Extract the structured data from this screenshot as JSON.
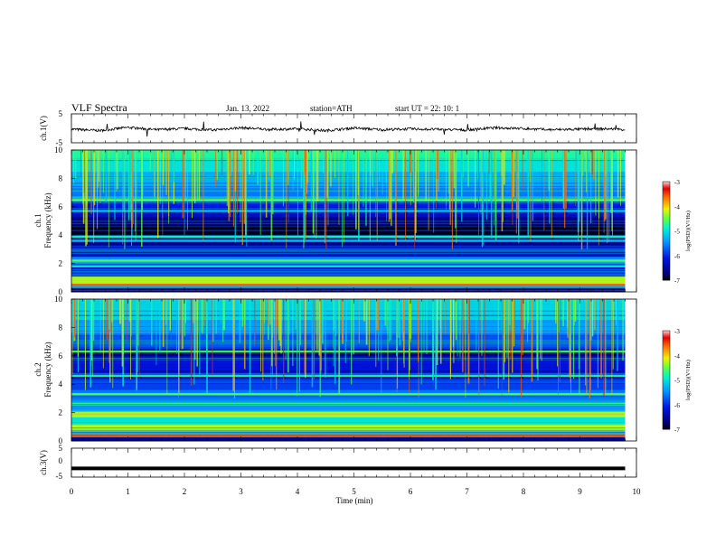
{
  "header": {
    "title": "VLF  Spectra",
    "date": "Jan.  13,  2022",
    "station": "station=ATH",
    "start_ut": "start  UT  =    22: 10: 1"
  },
  "chart_data": [
    {
      "panel": "ch1-voltage",
      "type": "line",
      "ylabel": "ch.1(V)",
      "ylim": [
        -5,
        5
      ],
      "yticks": [
        "5",
        "-5"
      ],
      "xlim": [
        0,
        10
      ],
      "series": [
        {
          "x": [
            0,
            0.5,
            1,
            1.5,
            2,
            2.5,
            3,
            3.5,
            4,
            4.5,
            5,
            5.5,
            6,
            6.5,
            7,
            7.5,
            8,
            8.5,
            9,
            9.5,
            9.8
          ],
          "values": [
            -0.3,
            -0.8,
            0.3,
            -0.5,
            -0.1,
            -0.6,
            0.2,
            -0.4,
            -0.2,
            -0.8,
            0.1,
            -0.5,
            -0.2,
            -0.4,
            -0.6,
            0.2,
            -0.1,
            -0.5,
            -0.3,
            -0.2,
            -0.4
          ]
        }
      ],
      "color": "#000000"
    },
    {
      "panel": "ch1-spectrogram",
      "type": "heatmap",
      "ylabel": "ch.1\nFrequency  (kHz)",
      "ylim": [
        0,
        10
      ],
      "yticks": [
        "0",
        "2",
        "4",
        "6",
        "8",
        "10"
      ],
      "xlim": [
        0,
        9.8
      ],
      "colorbar": {
        "label": "log(PSD)(V²/Hz)",
        "ticks": [
          "-3",
          "-4",
          "-5",
          "-6",
          "-7"
        ],
        "range": [
          -7,
          -3
        ]
      },
      "bands": [
        {
          "from": 0.0,
          "to": 0.3,
          "level": -6.8
        },
        {
          "from": 0.3,
          "to": 0.6,
          "level": -5.3
        },
        {
          "from": 0.6,
          "to": 1.0,
          "level": -4.3
        },
        {
          "from": 1.0,
          "to": 1.5,
          "level": -5.9
        },
        {
          "from": 1.5,
          "to": 2.0,
          "level": -6.1
        },
        {
          "from": 2.0,
          "to": 2.5,
          "level": -5.5
        },
        {
          "from": 2.5,
          "to": 3.3,
          "level": -6.3
        },
        {
          "from": 3.3,
          "to": 4.0,
          "level": -6.6
        },
        {
          "from": 4.0,
          "to": 4.7,
          "level": -6.95
        },
        {
          "from": 4.7,
          "to": 5.3,
          "level": -6.7
        },
        {
          "from": 5.3,
          "to": 6.0,
          "level": -6.3
        },
        {
          "from": 6.0,
          "to": 6.4,
          "level": -6.1
        },
        {
          "from": 6.4,
          "to": 6.7,
          "level": -5.1
        },
        {
          "from": 6.7,
          "to": 7.5,
          "level": -5.6
        },
        {
          "from": 7.5,
          "to": 8.5,
          "level": -5.3
        },
        {
          "from": 8.5,
          "to": 9.3,
          "level": -5.0
        },
        {
          "from": 9.3,
          "to": 10.0,
          "level": -4.8
        }
      ],
      "lines": [
        {
          "f": 0.5,
          "level": -3.6
        },
        {
          "f": 1.0,
          "level": -4.3
        },
        {
          "f": 1.8,
          "level": -4.9
        },
        {
          "f": 2.2,
          "level": -4.6
        },
        {
          "f": 3.6,
          "level": -5.2
        },
        {
          "f": 3.9,
          "level": -4.9
        },
        {
          "f": 5.7,
          "level": -5.2
        },
        {
          "f": 6.5,
          "level": -4.5
        }
      ]
    },
    {
      "panel": "ch2-spectrogram",
      "type": "heatmap",
      "ylabel": "ch.2\nFrequency  (kHz)",
      "ylim": [
        0,
        10
      ],
      "yticks": [
        "0",
        "2",
        "4",
        "6",
        "8",
        "10"
      ],
      "xlim": [
        0,
        9.8
      ],
      "colorbar": {
        "label": "log(PSD)(V²/Hz)",
        "ticks": [
          "-3",
          "-4",
          "-5",
          "-6",
          "-7"
        ],
        "range": [
          -7,
          -3
        ]
      },
      "bands": [
        {
          "from": 0.0,
          "to": 0.3,
          "level": -6.6
        },
        {
          "from": 0.3,
          "to": 0.7,
          "level": -5.1
        },
        {
          "from": 0.7,
          "to": 1.2,
          "level": -4.4
        },
        {
          "from": 1.2,
          "to": 1.7,
          "level": -5.0
        },
        {
          "from": 1.7,
          "to": 2.1,
          "level": -4.3
        },
        {
          "from": 2.1,
          "to": 2.8,
          "level": -5.3
        },
        {
          "from": 2.8,
          "to": 3.6,
          "level": -5.6
        },
        {
          "from": 3.6,
          "to": 4.4,
          "level": -5.9
        },
        {
          "from": 4.4,
          "to": 5.0,
          "level": -6.4
        },
        {
          "from": 5.0,
          "to": 6.0,
          "level": -6.2
        },
        {
          "from": 6.0,
          "to": 6.5,
          "level": -6.7
        },
        {
          "from": 6.5,
          "to": 7.5,
          "level": -5.8
        },
        {
          "from": 7.5,
          "to": 8.5,
          "level": -5.4
        },
        {
          "from": 8.5,
          "to": 10.0,
          "level": -5.1
        }
      ],
      "lines": [
        {
          "f": 0.4,
          "level": -3.5
        },
        {
          "f": 1.0,
          "level": -4.2
        },
        {
          "f": 1.9,
          "level": -4.0
        },
        {
          "f": 2.6,
          "level": -4.7
        },
        {
          "f": 3.3,
          "level": -4.6
        },
        {
          "f": 4.6,
          "level": -5.0
        },
        {
          "f": 6.3,
          "level": -4.6
        }
      ]
    },
    {
      "panel": "ch3-voltage",
      "type": "line",
      "ylabel": "ch.3(V)",
      "ylim": [
        -5,
        5
      ],
      "yticks": [
        "5",
        "0",
        "-5"
      ],
      "xlim": [
        0,
        10
      ],
      "xticks": [
        "0",
        "1",
        "2",
        "3",
        "4",
        "5",
        "6",
        "7",
        "8",
        "9",
        "10"
      ],
      "xlabel": "Time  (min)",
      "series": [
        {
          "x": [
            0,
            9.8
          ],
          "values": [
            -2.0,
            -2.0
          ]
        }
      ],
      "color": "#000000"
    }
  ]
}
